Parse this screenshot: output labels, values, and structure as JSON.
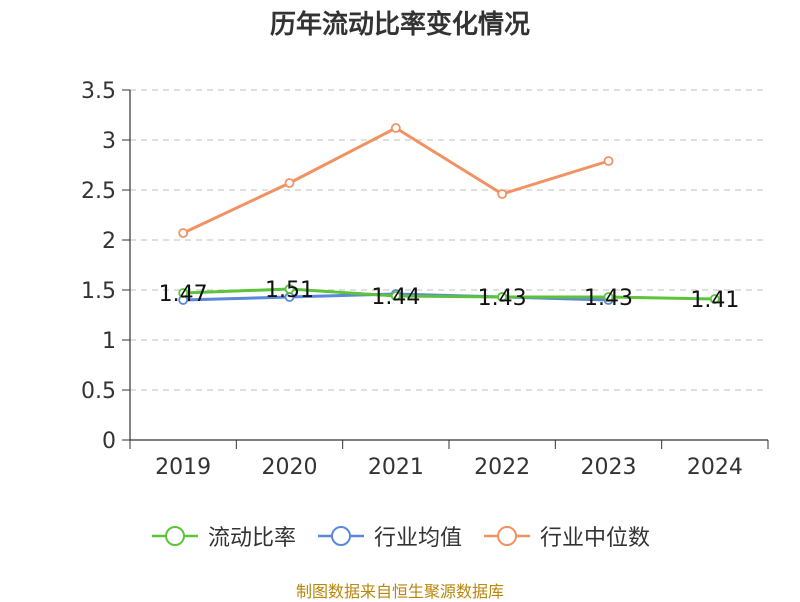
{
  "chart_data": {
    "type": "line",
    "title": "历年流动比率变化情况",
    "categories": [
      "2019",
      "2020",
      "2021",
      "2022",
      "2023",
      "2024"
    ],
    "yticks": [
      "0",
      "0.5",
      "1",
      "1.5",
      "2",
      "2.5",
      "3",
      "3.5"
    ],
    "ylim": [
      0,
      3.5
    ],
    "xlabel": "",
    "ylabel": "",
    "grid": true,
    "legend_position": "bottom",
    "series": [
      {
        "name": "流动比率",
        "color": "#5cc33a",
        "values": [
          1.47,
          1.51,
          1.44,
          1.43,
          1.43,
          1.41
        ],
        "labels": [
          "1.47",
          "1.51",
          "1.44",
          "1.43",
          "1.43",
          "1.41"
        ]
      },
      {
        "name": "行业均值",
        "color": "#5b88d8",
        "values": [
          1.4,
          1.43,
          1.46,
          1.43,
          1.4,
          null
        ]
      },
      {
        "name": "行业中位数",
        "color": "#f29262",
        "values": [
          2.07,
          2.57,
          3.12,
          2.46,
          2.79,
          null
        ]
      }
    ]
  },
  "source": "制图数据来自恒生聚源数据库"
}
